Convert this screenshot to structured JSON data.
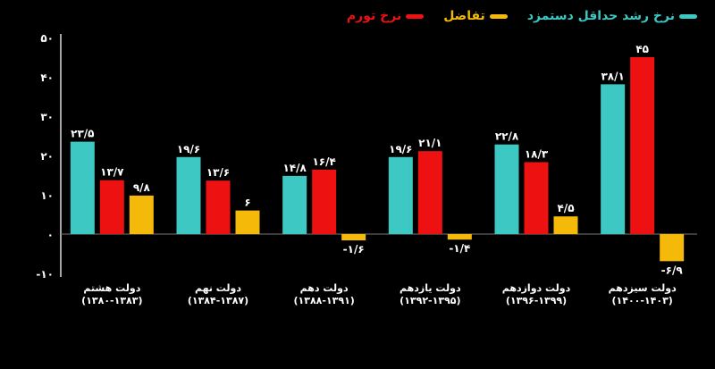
{
  "chart_data": {
    "type": "bar",
    "title": "",
    "xlabel": "",
    "ylabel": "",
    "ylim": [
      -10,
      50
    ],
    "yticks": [
      50,
      40,
      30,
      20,
      10,
      0,
      -10
    ],
    "ytick_labels": [
      "۵۰",
      "۴۰",
      "۳۰",
      "۲۰",
      "۱۰",
      "۰",
      "-۱۰"
    ],
    "grid": false,
    "legend_position": "top-right",
    "categories": [
      {
        "name": "دولت هشتم",
        "period": "(۱۳۸۰-۱۳۸۳)"
      },
      {
        "name": "دولت نهم",
        "period": "(۱۳۸۴-۱۳۸۷)"
      },
      {
        "name": "دولت دهم",
        "period": "(۱۳۸۸-۱۳۹۱)"
      },
      {
        "name": "دولت یازدهم",
        "period": "(۱۳۹۲-۱۳۹۵)"
      },
      {
        "name": "دولت دوازدهم",
        "period": "(۱۳۹۶-۱۳۹۹)"
      },
      {
        "name": "دولت سیزدهم",
        "period": "(۱۴۰۰-۱۴۰۳)"
      }
    ],
    "series": [
      {
        "name": "نرخ رشد حداقل دستمزد",
        "color": "#3ec8c3",
        "values": [
          23.5,
          19.6,
          14.8,
          19.6,
          22.8,
          38.1
        ],
        "labels": [
          "۲۳/۵",
          "۱۹/۶",
          "۱۴/۸",
          "۱۹/۶",
          "۲۲/۸",
          "۳۸/۱"
        ]
      },
      {
        "name": "نرخ تورم",
        "color": "#ee1111",
        "values": [
          13.7,
          13.6,
          16.4,
          21.1,
          18.3,
          45
        ],
        "labels": [
          "۱۳/۷",
          "۱۳/۶",
          "۱۶/۴",
          "۲۱/۱",
          "۱۸/۳",
          "۴۵"
        ]
      },
      {
        "name": "تفاضل",
        "color": "#f5b90a",
        "values": [
          9.8,
          6,
          -1.6,
          -1.4,
          4.5,
          -6.9
        ],
        "labels": [
          "۹/۸",
          "۶",
          "-۱/۶",
          "-۱/۴",
          "۴/۵",
          "-۶/۹"
        ]
      }
    ]
  }
}
